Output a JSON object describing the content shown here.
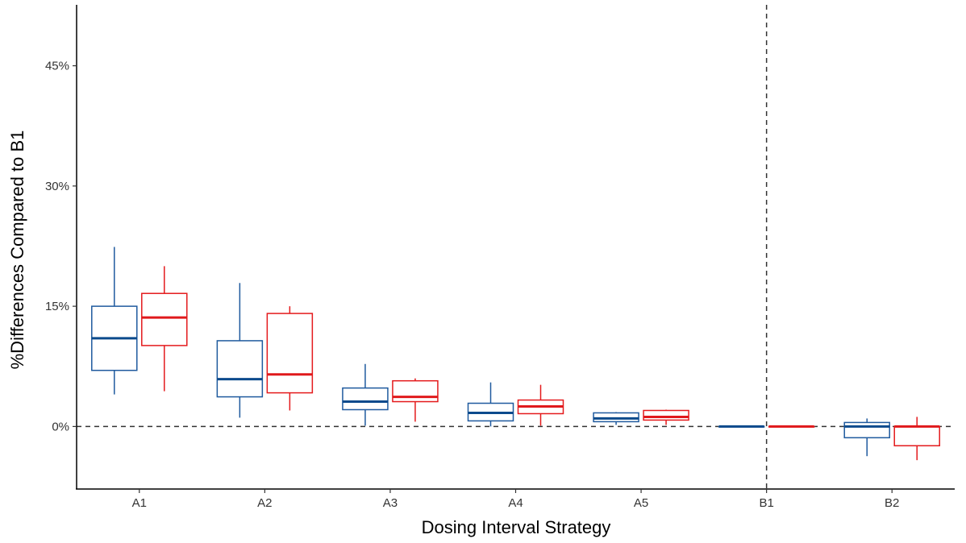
{
  "chart_data": {
    "type": "boxplot",
    "xlabel": "Dosing Interval Strategy",
    "ylabel": "%Differences Compared to B1",
    "categories": [
      "A1",
      "A2",
      "A3",
      "A4",
      "A5",
      "B1",
      "B2"
    ],
    "ylim": [
      -7.8,
      52.6
    ],
    "yticks": [
      0,
      15,
      30,
      45
    ],
    "ytick_labels": [
      "0%",
      "15%",
      "30%",
      "45%"
    ],
    "grid": false,
    "legend": "none",
    "reference_lines": [
      {
        "orientation": "horizontal",
        "at": 0,
        "style": "dashed"
      },
      {
        "orientation": "vertical",
        "at": "B1",
        "style": "dashed"
      }
    ],
    "series": [
      {
        "color": "#1f5a9e",
        "boxes": [
          {
            "min": 4.0,
            "q1": 7.0,
            "median": 11.0,
            "q3": 15.0,
            "max": 22.4
          },
          {
            "min": 1.1,
            "q1": 3.7,
            "median": 5.9,
            "q3": 10.7,
            "max": 17.9
          },
          {
            "min": 0.1,
            "q1": 2.1,
            "median": 3.1,
            "q3": 4.8,
            "max": 7.8
          },
          {
            "min": 0.0,
            "q1": 0.7,
            "median": 1.7,
            "q3": 2.9,
            "max": 5.5
          },
          {
            "min": 0.2,
            "q1": 0.6,
            "median": 1.0,
            "q3": 1.7,
            "max": 1.8
          },
          {
            "min": 0.0,
            "q1": 0.0,
            "median": 0.0,
            "q3": 0.0,
            "max": 0.0
          },
          {
            "min": -3.7,
            "q1": -1.4,
            "median": 0.0,
            "q3": 0.5,
            "max": 1.0
          }
        ]
      },
      {
        "color": "#e41a1c",
        "boxes": [
          {
            "min": 4.4,
            "q1": 10.1,
            "median": 13.6,
            "q3": 16.6,
            "max": 20.0
          },
          {
            "min": 2.0,
            "q1": 4.2,
            "median": 6.5,
            "q3": 14.1,
            "max": 15.0
          },
          {
            "min": 0.6,
            "q1": 3.1,
            "median": 3.7,
            "q3": 5.7,
            "max": 6.0
          },
          {
            "min": 0.1,
            "q1": 1.6,
            "median": 2.5,
            "q3": 3.3,
            "max": 5.2
          },
          {
            "min": 0.2,
            "q1": 0.8,
            "median": 1.2,
            "q3": 2.0,
            "max": 2.1
          },
          {
            "min": 0.0,
            "q1": 0.0,
            "median": 0.0,
            "q3": 0.0,
            "max": 0.0
          },
          {
            "min": -4.2,
            "q1": -2.4,
            "median": 0.0,
            "q3": 0.0,
            "max": 1.2
          }
        ]
      }
    ]
  }
}
